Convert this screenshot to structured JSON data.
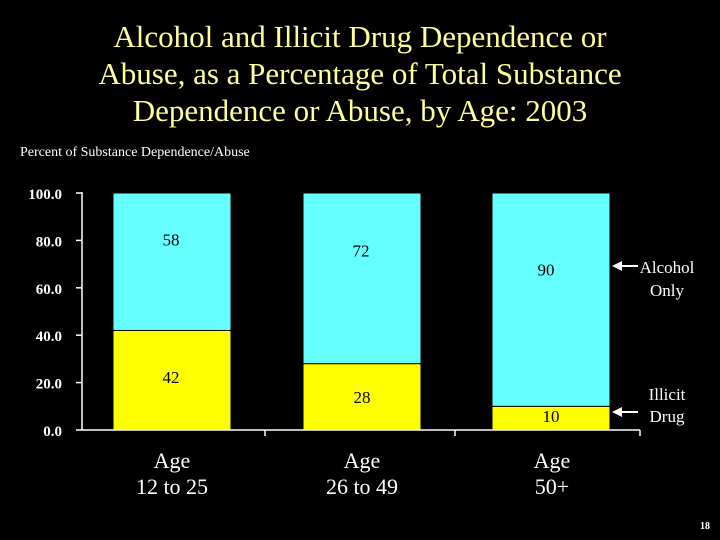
{
  "slide": {
    "title_lines": [
      "Alcohol and Illicit Drug Dependence or",
      "Abuse, as a Percentage of Total Substance",
      "Dependence or Abuse, by Age: 2003"
    ],
    "page_number": "18"
  },
  "chart_data": {
    "type": "bar",
    "stacked": true,
    "title": "Alcohol and Illicit Drug Dependence or Abuse, as a Percentage of Total Substance Dependence or Abuse, by Age: 2003",
    "ylabel": "Percent of Substance Dependence/Abuse",
    "xlabel": "",
    "ylim": [
      0,
      100
    ],
    "yticks": [
      "0.0",
      "20.0",
      "40.0",
      "60.0",
      "80.0",
      "100.0"
    ],
    "ytick_values": [
      0,
      20,
      40,
      60,
      80,
      100
    ],
    "categories": [
      [
        "Age",
        "12 to 25"
      ],
      [
        "Age",
        "26 to 49"
      ],
      [
        "Age",
        "50+"
      ]
    ],
    "series": [
      {
        "name": "Illicit Drug",
        "legend_lines": [
          "Illicit",
          "Drug"
        ],
        "values": [
          42,
          28,
          10
        ],
        "color": "#FFFF00"
      },
      {
        "name": "Alcohol Only",
        "legend_lines": [
          "Alcohol",
          "Only"
        ],
        "values": [
          58,
          72,
          90
        ],
        "color": "#66FFFF"
      }
    ],
    "data_labels": {
      "Illicit Drug": [
        "42",
        "28",
        "10"
      ],
      "Alcohol Only": [
        "58",
        "72",
        "90"
      ]
    },
    "legend": "right, arrows pointing to top bar segments",
    "grid": false,
    "colors": {
      "axis": "#FFFFFF",
      "tick_text": "#FFFFFF",
      "label_text": "#000000",
      "category_text": "#FFFFFF",
      "legend_text": "#FFFFFF",
      "title_text": "#FFFF99"
    }
  }
}
